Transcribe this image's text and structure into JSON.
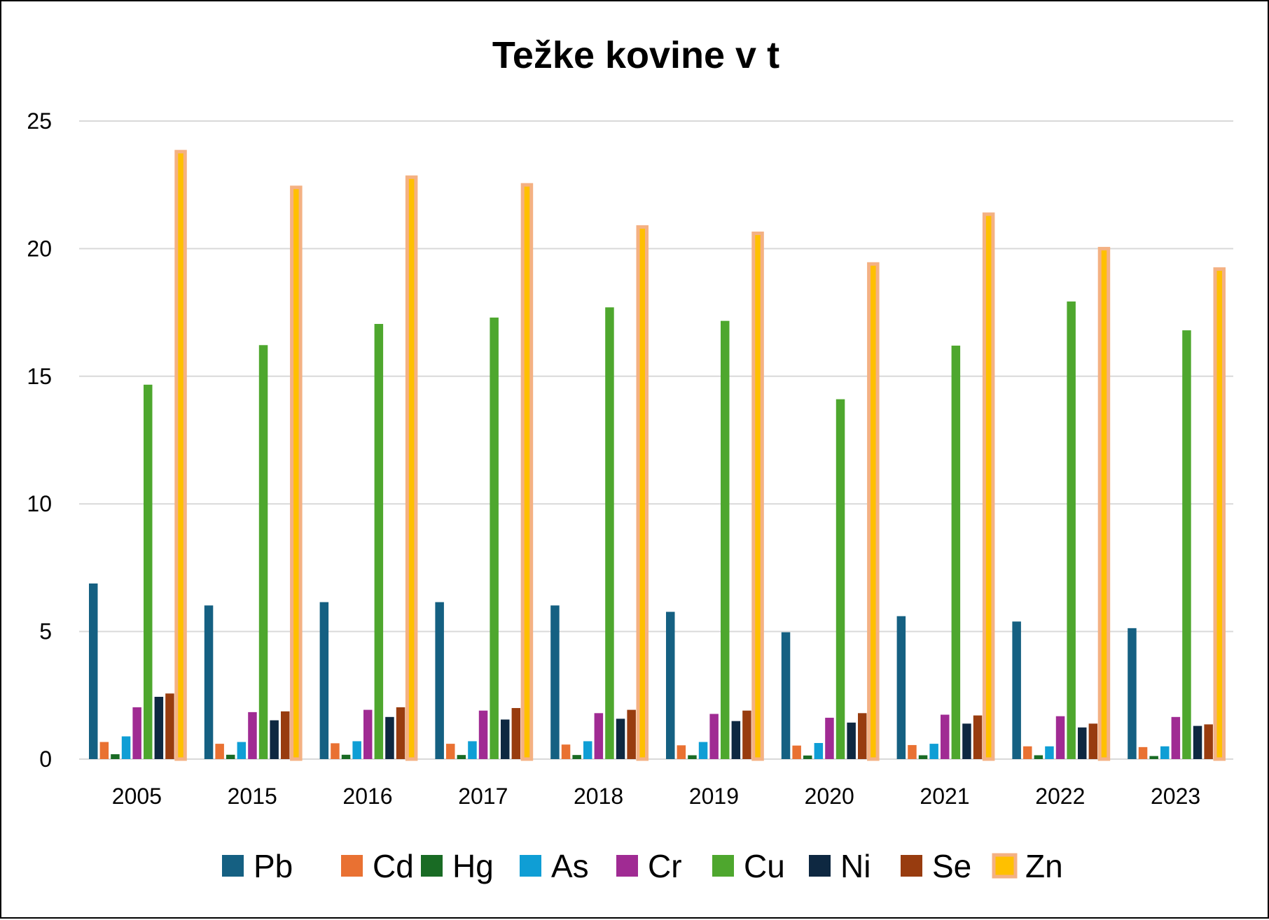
{
  "chart_data": {
    "type": "bar",
    "title": "Težke kovine v t",
    "xlabel": "",
    "ylabel": "",
    "ylim": [
      0,
      25
    ],
    "yticks": [
      "0",
      "5",
      "10",
      "15",
      "20",
      "25"
    ],
    "grid": true,
    "legend_position": "bottom",
    "categories": [
      "2005",
      "2015",
      "2016",
      "2017",
      "2018",
      "2019",
      "2020",
      "2021",
      "2022",
      "2023"
    ],
    "series": [
      {
        "name": "Pb",
        "color": "#156082",
        "values": [
          6.88,
          6.02,
          6.15,
          6.15,
          6.02,
          5.77,
          4.97,
          5.6,
          5.39,
          5.13
        ]
      },
      {
        "name": "Cd",
        "color": "#E97132",
        "values": [
          0.67,
          0.6,
          0.62,
          0.6,
          0.57,
          0.54,
          0.53,
          0.55,
          0.5,
          0.47
        ]
      },
      {
        "name": "Hg",
        "color": "#196B24",
        "values": [
          0.19,
          0.17,
          0.17,
          0.16,
          0.16,
          0.15,
          0.14,
          0.15,
          0.15,
          0.12
        ]
      },
      {
        "name": "As",
        "color": "#0F9ED5",
        "values": [
          0.89,
          0.67,
          0.7,
          0.7,
          0.7,
          0.67,
          0.63,
          0.6,
          0.5,
          0.5
        ]
      },
      {
        "name": "Cr",
        "color": "#A02B93",
        "values": [
          2.03,
          1.84,
          1.93,
          1.9,
          1.8,
          1.77,
          1.62,
          1.74,
          1.68,
          1.65
        ]
      },
      {
        "name": "Cu",
        "color": "#4EA72E",
        "values": [
          14.67,
          16.22,
          17.05,
          17.3,
          17.7,
          17.17,
          14.1,
          16.2,
          17.93,
          16.8
        ]
      },
      {
        "name": "Ni",
        "color": "#0E2841",
        "values": [
          2.44,
          1.52,
          1.65,
          1.55,
          1.58,
          1.49,
          1.43,
          1.39,
          1.24,
          1.3
        ]
      },
      {
        "name": "Se",
        "color": "#983C0F",
        "values": [
          2.57,
          1.87,
          2.03,
          2.0,
          1.93,
          1.9,
          1.8,
          1.71,
          1.39,
          1.36
        ]
      },
      {
        "name": "Zn",
        "color": "#FFC000",
        "outline": "#F4B183",
        "values": [
          23.8,
          22.4,
          22.8,
          22.5,
          20.85,
          20.6,
          19.4,
          21.35,
          20.0,
          19.2
        ]
      }
    ]
  }
}
